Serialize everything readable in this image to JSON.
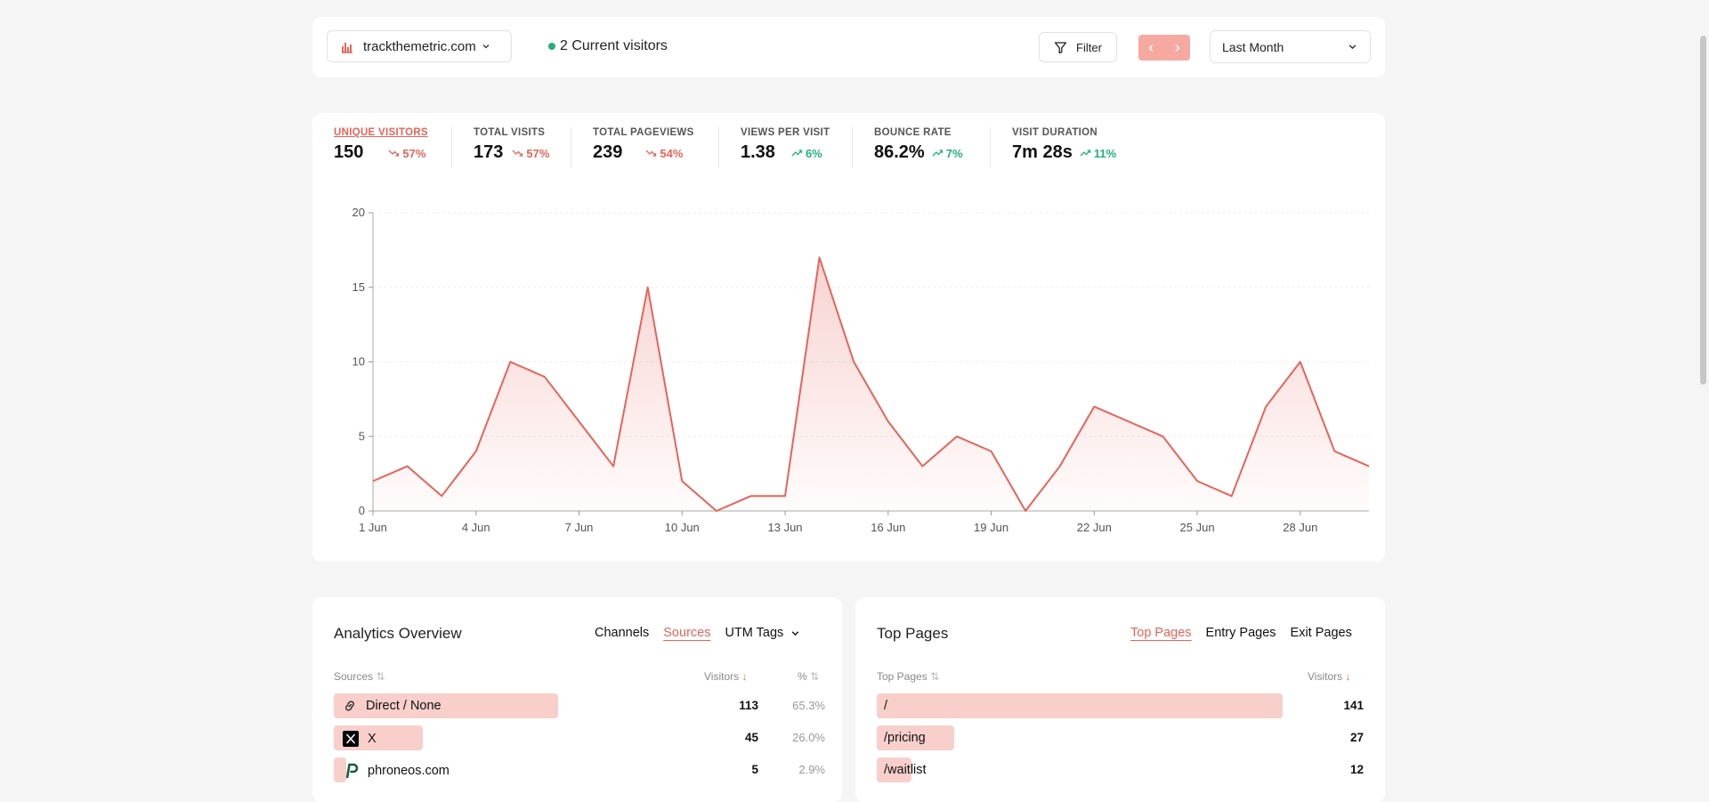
{
  "topbar": {
    "site": "trackthemetric.com",
    "current_visitors": "2 Current visitors",
    "filter_label": "Filter",
    "period": "Last Month"
  },
  "stats": [
    {
      "label": "UNIQUE VISITORS",
      "value": "150",
      "change": "57%",
      "trend": "down",
      "active": true
    },
    {
      "label": "TOTAL VISITS",
      "value": "173",
      "change": "57%",
      "trend": "down"
    },
    {
      "label": "TOTAL PAGEVIEWS",
      "value": "239",
      "change": "54%",
      "trend": "down"
    },
    {
      "label": "VIEWS PER VISIT",
      "value": "1.38",
      "change": "6%",
      "trend": "up"
    },
    {
      "label": "BOUNCE RATE",
      "value": "86.2%",
      "change": "7%",
      "trend": "up"
    },
    {
      "label": "VISIT DURATION",
      "value": "7m 28s",
      "change": "11%",
      "trend": "up"
    }
  ],
  "chart_data": {
    "type": "area",
    "x": [
      "1 Jun",
      "2 Jun",
      "3 Jun",
      "4 Jun",
      "5 Jun",
      "6 Jun",
      "7 Jun",
      "8 Jun",
      "9 Jun",
      "10 Jun",
      "11 Jun",
      "12 Jun",
      "13 Jun",
      "14 Jun",
      "15 Jun",
      "16 Jun",
      "17 Jun",
      "18 Jun",
      "19 Jun",
      "20 Jun",
      "21 Jun",
      "22 Jun",
      "23 Jun",
      "24 Jun",
      "25 Jun",
      "26 Jun",
      "27 Jun",
      "28 Jun",
      "29 Jun",
      "30 Jun"
    ],
    "values": [
      2,
      3,
      1,
      4,
      10,
      9,
      6,
      3,
      15,
      2,
      0,
      1,
      1,
      17,
      10,
      6,
      3,
      5,
      4,
      0,
      3,
      7,
      6,
      5,
      2,
      1,
      7,
      10,
      4,
      3
    ],
    "x_ticks": [
      "1 Jun",
      "4 Jun",
      "7 Jun",
      "10 Jun",
      "13 Jun",
      "16 Jun",
      "19 Jun",
      "22 Jun",
      "25 Jun",
      "28 Jun"
    ],
    "y_ticks": [
      0,
      5,
      10,
      15,
      20
    ],
    "ylim": [
      0,
      20
    ],
    "color": "#e5645a"
  },
  "overview": {
    "title": "Analytics Overview",
    "tabs": [
      "Channels",
      "Sources",
      "UTM Tags"
    ],
    "active_tab": "Sources",
    "columns": {
      "name": "Sources",
      "visitors": "Visitors",
      "pct": "%"
    },
    "rows": [
      {
        "label": "Direct / None",
        "icon": "link-icon",
        "visitors": "113",
        "pct": "65.3%",
        "share": 1.0
      },
      {
        "label": "X",
        "icon": "x-logo-icon",
        "visitors": "45",
        "pct": "26.0%",
        "share": 0.398
      },
      {
        "label": "phroneos.com",
        "icon": "phroneos-logo-icon",
        "visitors": "5",
        "pct": "2.9%",
        "share": 0.044
      }
    ]
  },
  "toppages": {
    "title": "Top Pages",
    "tabs": [
      "Top Pages",
      "Entry Pages",
      "Exit Pages"
    ],
    "active_tab": "Top Pages",
    "columns": {
      "name": "Top Pages",
      "visitors": "Visitors"
    },
    "rows": [
      {
        "label": "/",
        "visitors": "141",
        "share": 1.0
      },
      {
        "label": "/pricing",
        "visitors": "27",
        "share": 0.191
      },
      {
        "label": "/waitlist",
        "visitors": "12",
        "share": 0.085
      }
    ]
  }
}
